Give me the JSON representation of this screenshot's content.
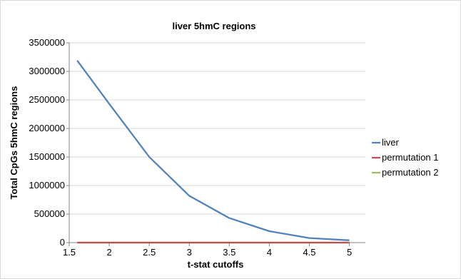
{
  "chart_data": {
    "type": "line",
    "title": "liver 5hmC regions",
    "xlabel": "t-stat cutoffs",
    "ylabel": "Total CpGs 5hmC regions",
    "x": [
      1.6,
      2,
      2.5,
      3,
      3.5,
      4,
      4.5,
      5
    ],
    "xlim": [
      1.5,
      5.2
    ],
    "ylim": [
      0,
      3500000
    ],
    "xticks": [
      "1.5",
      "2",
      "2.5",
      "3",
      "3.5",
      "4",
      "4.5",
      "5"
    ],
    "yticks": [
      "0",
      "500000",
      "1000000",
      "1500000",
      "2000000",
      "2500000",
      "3000000",
      "3500000"
    ],
    "grid": "horizontal",
    "legend_position": "right",
    "series": [
      {
        "name": "liver",
        "color": "#4f81bd",
        "values": [
          3190000,
          2430000,
          1500000,
          820000,
          430000,
          200000,
          80000,
          40000
        ]
      },
      {
        "name": "permutation 1",
        "color": "#c0504d",
        "values": [
          0,
          0,
          0,
          0,
          0,
          0,
          0,
          0
        ]
      },
      {
        "name": "permutation 2",
        "color": "#9bbb59",
        "values": [
          0,
          0,
          0,
          0,
          0,
          0,
          0,
          0
        ]
      }
    ]
  }
}
